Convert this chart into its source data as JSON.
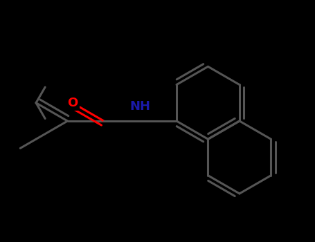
{
  "background_color": "#000000",
  "bond_color": "#555555",
  "oxygen_color": "#ff0000",
  "nitrogen_color": "#1a1aaa",
  "line_width": 2.2,
  "figsize": [
    4.55,
    3.5
  ],
  "dpi": 100,
  "xlim": [
    0,
    9.1
  ],
  "ylim": [
    0,
    7.0
  ],
  "BL": 1.05,
  "nh_label": "NH",
  "o_label": "O",
  "nh_fontsize": 13,
  "o_fontsize": 13
}
